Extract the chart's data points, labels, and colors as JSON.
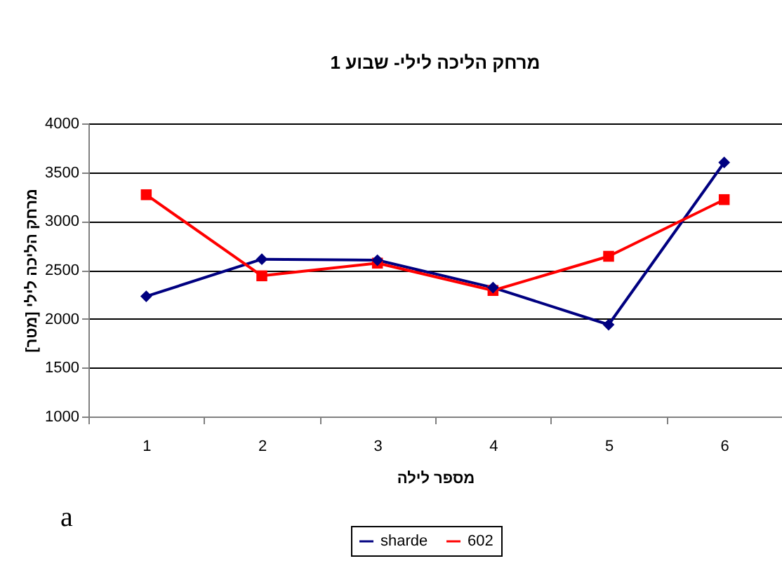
{
  "chart_data": {
    "type": "line",
    "title": "מרחק הליכה לילי- שבוע 1",
    "xlabel": "מספר לילה",
    "ylabel": "מרחק הליכה לילי [מטר]",
    "categories": [
      "1",
      "2",
      "3",
      "4",
      "5",
      "6"
    ],
    "series": [
      {
        "name": "sharde",
        "color": "#000080",
        "marker": "diamond",
        "values": [
          2230,
          2610,
          2600,
          2320,
          1940,
          3600
        ]
      },
      {
        "name": "602",
        "color": "#ff0000",
        "marker": "square",
        "values": [
          3270,
          2440,
          2570,
          2290,
          2640,
          3220
        ]
      }
    ],
    "ylim": [
      1000,
      4000
    ],
    "yticks": [
      1000,
      1500,
      2000,
      2500,
      3000,
      3500,
      4000
    ],
    "grid": "y",
    "legend": "bottom",
    "annotations": [
      "a"
    ]
  }
}
